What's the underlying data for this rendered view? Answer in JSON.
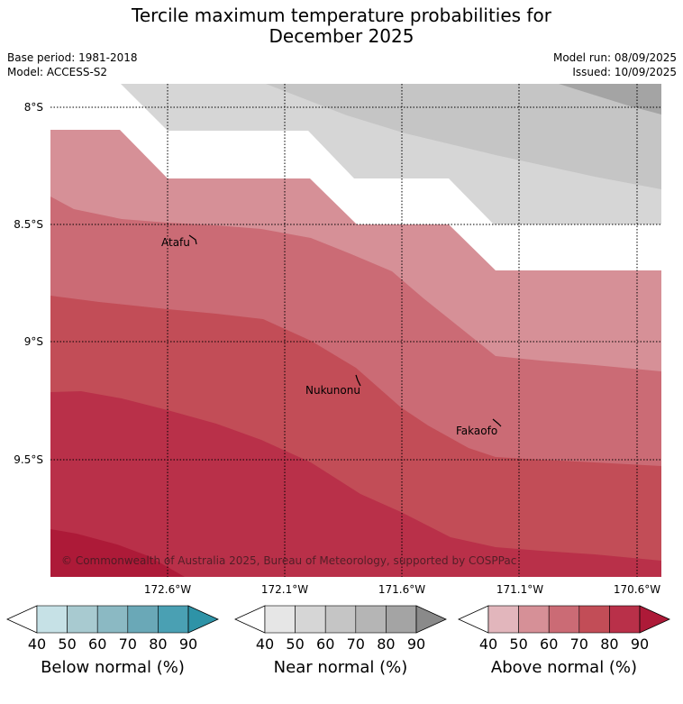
{
  "title": {
    "line1": "Tercile maximum temperature probabilities for",
    "line2": "December 2025"
  },
  "meta": {
    "base_period": "Base period: 1981-2018",
    "model": "Model: ACCESS-S2",
    "model_run": "Model run: 08/09/2025",
    "issued": "Issued: 10/09/2025"
  },
  "map": {
    "lat_ticks": [
      "8°S",
      "8.5°S",
      "9°S",
      "9.5°S"
    ],
    "lon_ticks": [
      "172.6°W",
      "172.1°W",
      "171.6°W",
      "171.1°W",
      "170.6°W"
    ],
    "places": [
      "Atafu",
      "Nukunonu",
      "Fakaofo"
    ],
    "copyright": "© Commonwealth of Australia 2025, Bureau of Meteorology, supported by COSPPac"
  },
  "colorbars": [
    {
      "label": "Below normal (%)",
      "ticks": [
        "40",
        "50",
        "60",
        "70",
        "80",
        "90"
      ],
      "colors": [
        "#ffffff",
        "#c6e1e6",
        "#a8cad0",
        "#8bb9c3",
        "#6aa8b7",
        "#4aa0b3",
        "#2e93a7"
      ]
    },
    {
      "label": "Near normal (%)",
      "ticks": [
        "40",
        "50",
        "60",
        "70",
        "80",
        "90"
      ],
      "colors": [
        "#ffffff",
        "#e6e6e6",
        "#d6d6d6",
        "#c5c5c5",
        "#b5b5b5",
        "#a4a4a4",
        "#8a8a8a"
      ]
    },
    {
      "label": "Above normal (%)",
      "ticks": [
        "40",
        "50",
        "60",
        "70",
        "80",
        "90"
      ],
      "colors": [
        "#ffffff",
        "#e2b6bc",
        "#d69097",
        "#cb6b75",
        "#c24d57",
        "#b93049",
        "#ad1a38"
      ]
    }
  ]
}
